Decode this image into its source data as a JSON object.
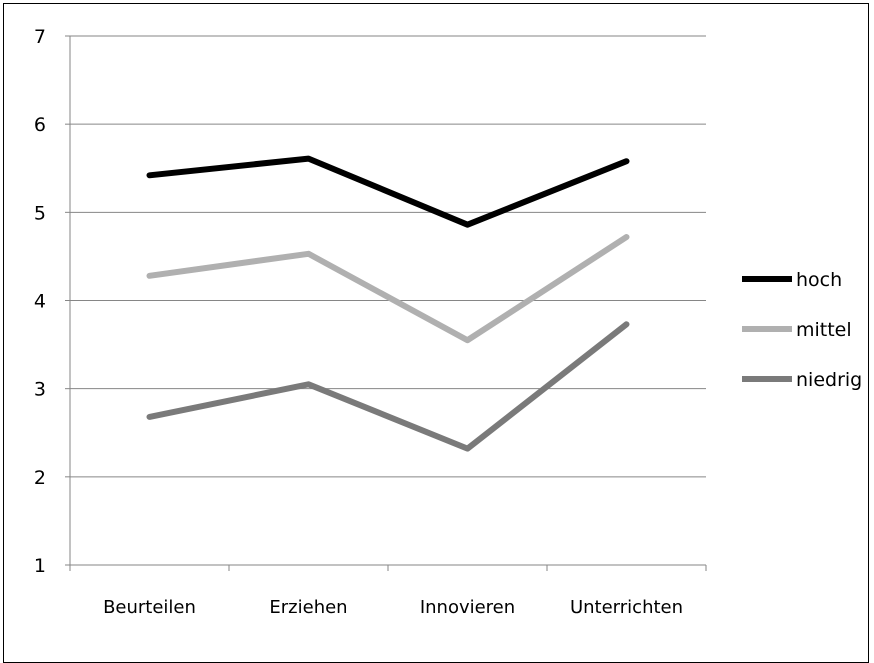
{
  "chart_data": {
    "type": "line",
    "categories": [
      "Beurteilen",
      "Erziehen",
      "Innovieren",
      "Unterrichten"
    ],
    "series": [
      {
        "name": "hoch",
        "values": [
          5.42,
          5.61,
          4.86,
          5.58
        ],
        "color": "#000000"
      },
      {
        "name": "mittel",
        "values": [
          4.28,
          4.53,
          3.55,
          4.72
        ],
        "color": "#b0b0b0"
      },
      {
        "name": "niedrig",
        "values": [
          2.68,
          3.05,
          2.32,
          3.73
        ],
        "color": "#7a7a7a"
      }
    ],
    "ylim": [
      1,
      7
    ],
    "yticks": [
      "1",
      "2",
      "3",
      "4",
      "5",
      "6",
      "7"
    ],
    "grid": true,
    "legend": "right"
  }
}
